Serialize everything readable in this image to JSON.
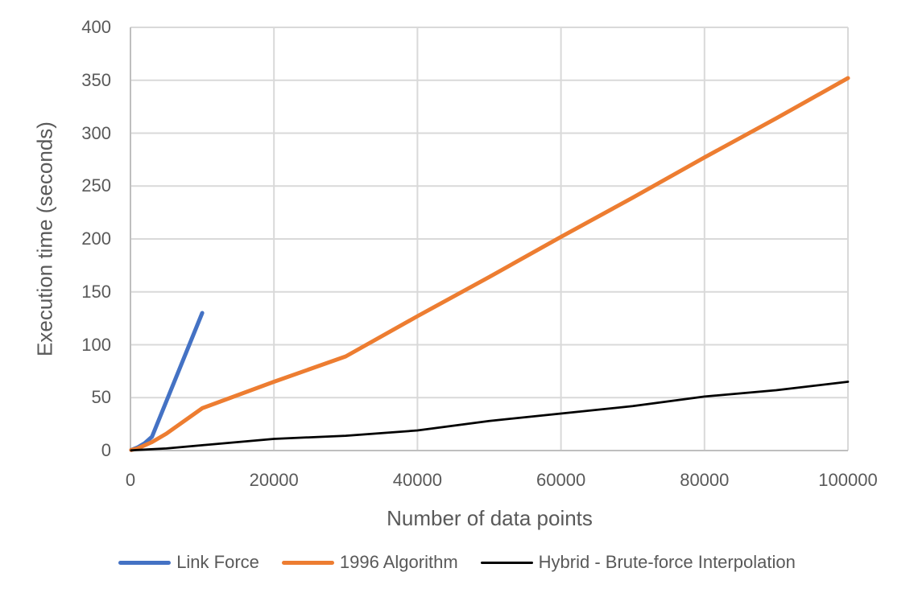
{
  "chart_data": {
    "type": "line",
    "title": "",
    "xlabel": "Number of data points",
    "ylabel": "Execution time (seconds)",
    "xlim": [
      0,
      100000
    ],
    "ylim": [
      0,
      400
    ],
    "x_ticks": [
      0,
      20000,
      40000,
      60000,
      80000,
      100000
    ],
    "y_ticks": [
      0,
      50,
      100,
      150,
      200,
      250,
      300,
      350,
      400
    ],
    "grid": true,
    "legend_position": "bottom",
    "colors": {
      "gridline": "#D9D9D9",
      "axis_line": "#BFBFBF",
      "text": "#595959",
      "background": "#FFFFFF"
    },
    "series": [
      {
        "name": "Link Force",
        "color": "#4472C4",
        "stroke_width": 5,
        "points": [
          [
            100,
            0.5
          ],
          [
            1000,
            3
          ],
          [
            2000,
            7
          ],
          [
            3000,
            13
          ],
          [
            10000,
            130
          ]
        ]
      },
      {
        "name": "1996 Algorithm",
        "color": "#ED7D31",
        "stroke_width": 5,
        "points": [
          [
            100,
            0.5
          ],
          [
            1000,
            2
          ],
          [
            3000,
            8
          ],
          [
            5000,
            16
          ],
          [
            10000,
            40
          ],
          [
            20000,
            65
          ],
          [
            30000,
            89
          ],
          [
            40000,
            127
          ],
          [
            50000,
            164
          ],
          [
            60000,
            202
          ],
          [
            70000,
            239
          ],
          [
            80000,
            277
          ],
          [
            90000,
            314
          ],
          [
            100000,
            352
          ]
        ]
      },
      {
        "name": "Hybrid - Brute-force Interpolation",
        "color": "#000000",
        "stroke_width": 2.75,
        "points": [
          [
            100,
            0.2
          ],
          [
            1000,
            0.5
          ],
          [
            5000,
            2
          ],
          [
            10000,
            5
          ],
          [
            20000,
            11
          ],
          [
            30000,
            14
          ],
          [
            40000,
            19
          ],
          [
            50000,
            28
          ],
          [
            60000,
            35
          ],
          [
            70000,
            42
          ],
          [
            80000,
            51
          ],
          [
            90000,
            57
          ],
          [
            100000,
            65
          ]
        ]
      }
    ]
  }
}
